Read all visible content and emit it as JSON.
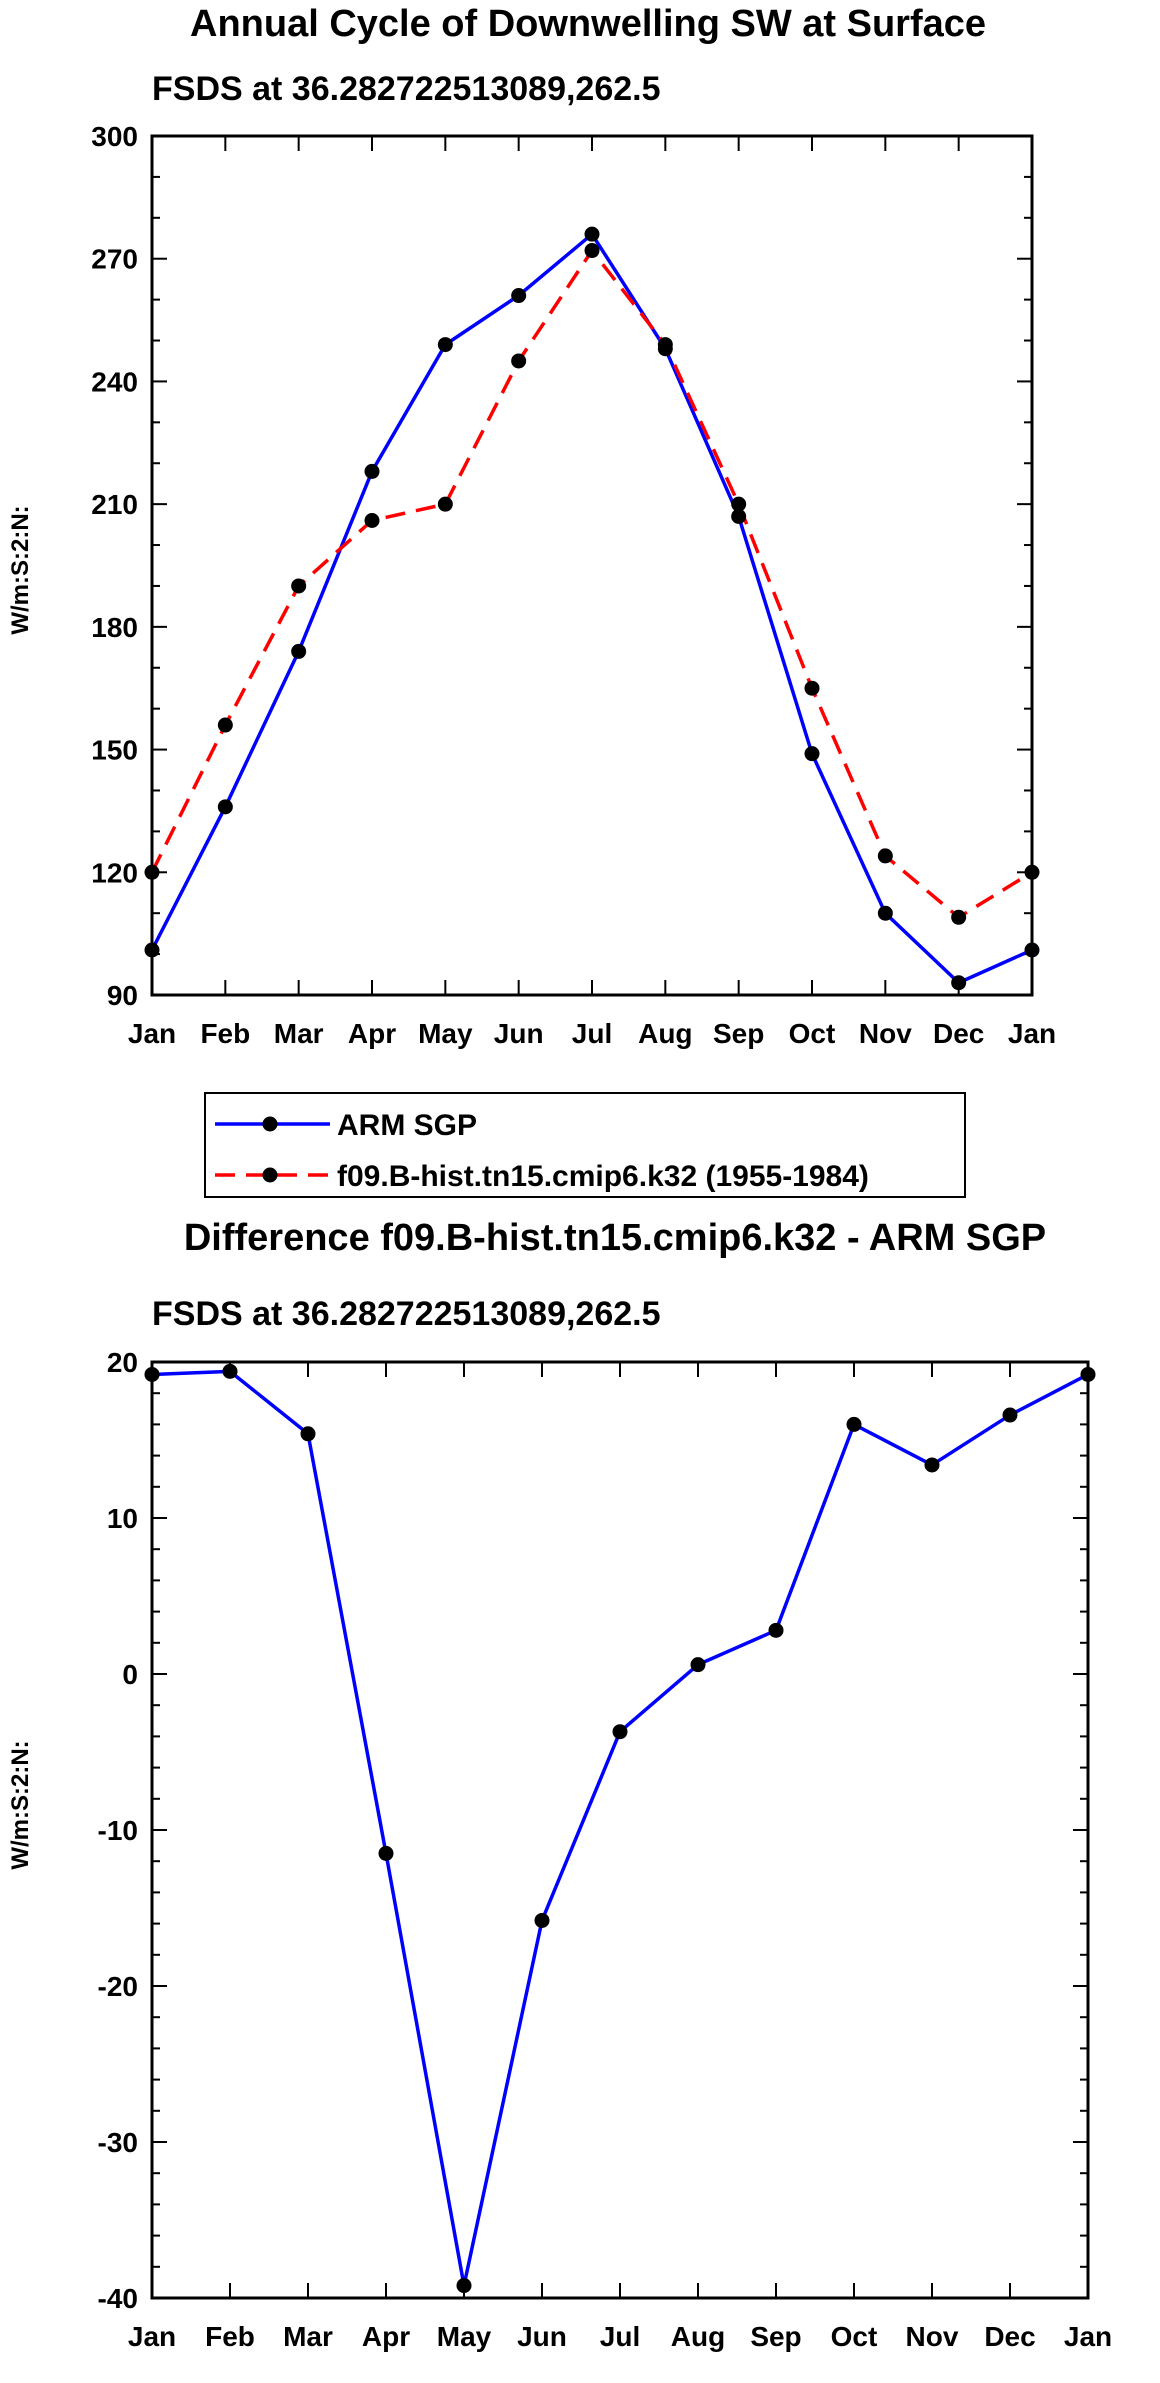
{
  "chart_data": [
    {
      "type": "line",
      "title": "Annual Cycle of Downwelling SW at Surface",
      "subtitle": "FSDS at 36.282722513089,262.5",
      "xlabel": "",
      "ylabel": "W/m:S:2:N:",
      "categories": [
        "Jan",
        "Feb",
        "Mar",
        "Apr",
        "May",
        "Jun",
        "Jul",
        "Aug",
        "Sep",
        "Oct",
        "Nov",
        "Dec",
        "Jan"
      ],
      "ylim": [
        90,
        300
      ],
      "yticks": [
        "90",
        "120",
        "150",
        "180",
        "210",
        "240",
        "270",
        "300"
      ],
      "series": [
        {
          "name": "ARM SGP",
          "color": "#0000ff",
          "dash": "solid",
          "values": [
            101,
            136,
            174,
            218,
            249,
            261,
            276,
            248,
            207,
            149,
            110,
            93,
            101
          ]
        },
        {
          "name": "f09.B-hist.tn15.cmip6.k32 (1955-1984)",
          "color": "#ff0000",
          "dash": "dashed",
          "values": [
            120,
            156,
            190,
            206,
            210,
            245,
            272,
            249,
            210,
            165,
            124,
            109,
            120
          ]
        }
      ],
      "legend": {
        "placement": "below",
        "entries": [
          "ARM SGP",
          "f09.B-hist.tn15.cmip6.k32 (1955-1984)"
        ]
      }
    },
    {
      "type": "line",
      "title": "Difference f09.B-hist.tn15.cmip6.k32 - ARM SGP",
      "subtitle": "FSDS at 36.282722513089,262.5",
      "xlabel": "",
      "ylabel": "W/m:S:2:N:",
      "categories": [
        "Jan",
        "Feb",
        "Mar",
        "Apr",
        "May",
        "Jun",
        "Jul",
        "Aug",
        "Sep",
        "Oct",
        "Nov",
        "Dec",
        "Jan"
      ],
      "ylim": [
        -40,
        20
      ],
      "yticks": [
        "-40",
        "-30",
        "-20",
        "-10",
        "0",
        "10",
        "20"
      ],
      "series": [
        {
          "name": "Difference",
          "color": "#0000ff",
          "dash": "solid",
          "values": [
            19.2,
            19.4,
            15.4,
            -11.5,
            -39.2,
            -15.8,
            -3.7,
            0.6,
            2.8,
            16.0,
            13.4,
            16.6,
            19.2
          ]
        }
      ]
    }
  ]
}
